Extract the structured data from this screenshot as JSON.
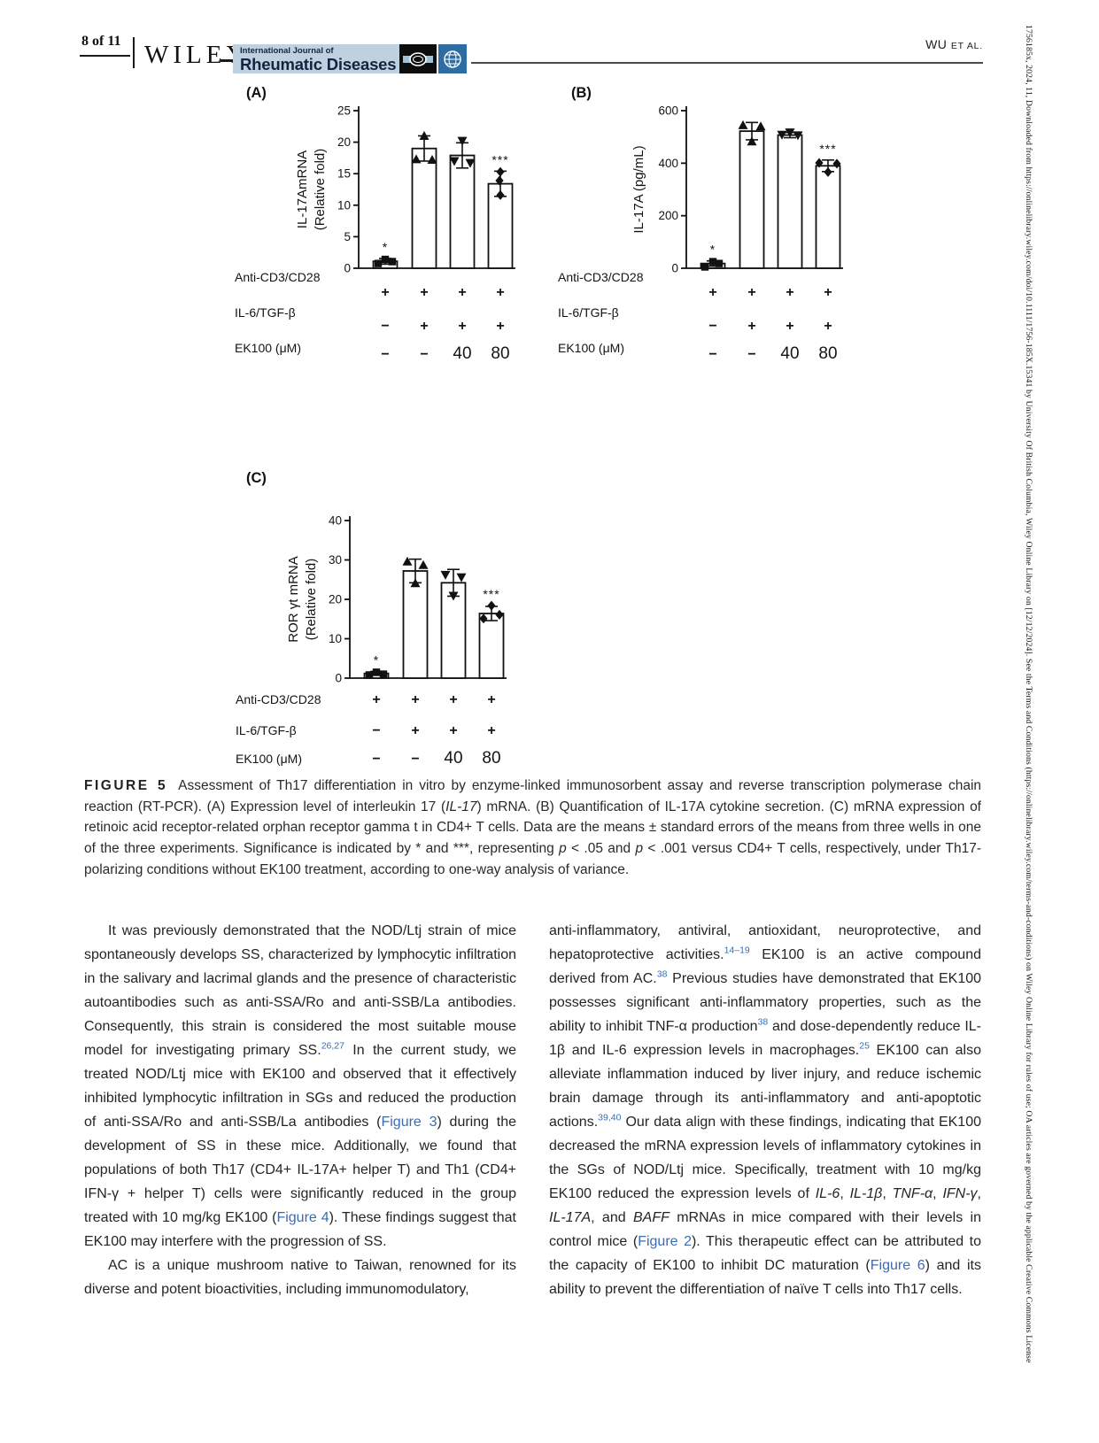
{
  "header": {
    "page_label": "8 of 11",
    "wiley_logo": "WILEY",
    "journal_small": "International Journal of",
    "journal_name": "Rheumatic Diseases",
    "running_author": "WU",
    "running_etal": "ET AL."
  },
  "colors": {
    "link_blue": "#3a6bb5",
    "banner_bg": "#bdd1e0",
    "banner_text": "#15243e",
    "logo_blue": "#2d6da4",
    "bar_outline": "#111111"
  },
  "chart_data": [
    {
      "id": "A",
      "type": "bar",
      "panel_label": "(A)",
      "ylabel_lines": [
        "IL-17AmRNA",
        "(Relative fold)"
      ],
      "ylim": [
        0,
        25
      ],
      "yticks": [
        0,
        5,
        10,
        15,
        20,
        25
      ],
      "values": [
        1.1,
        19,
        17.9,
        13.4
      ],
      "errors": [
        0.45,
        2,
        2,
        2
      ],
      "markers": [
        "square",
        "triangle-up",
        "triangle-down",
        "diamond"
      ],
      "points": [
        [
          [
            -8,
            0.75
          ],
          [
            0,
            1.4
          ],
          [
            8,
            1.05
          ]
        ],
        [
          [
            0,
            21
          ],
          [
            -9,
            17.3
          ],
          [
            9,
            17.2
          ]
        ],
        [
          [
            -9,
            17.0
          ],
          [
            9,
            16.7
          ],
          [
            0,
            20.2
          ]
        ],
        [
          [
            0,
            15.3
          ],
          [
            -1,
            13.9
          ],
          [
            0,
            11.6
          ]
        ]
      ],
      "sig": [
        "*",
        "",
        "",
        "***"
      ],
      "conditions": {
        "labels": [
          "Anti-CD3/CD28",
          "IL-6/TGF-β",
          "EK100 (μM)"
        ],
        "rows": [
          [
            "+",
            "+",
            "+",
            "+"
          ],
          [
            "−",
            "+",
            "+",
            "+"
          ],
          [
            "−",
            "−",
            "40",
            "80"
          ]
        ]
      }
    },
    {
      "id": "B",
      "type": "bar",
      "panel_label": "(B)",
      "ylabel_lines": [
        "IL-17A (pg/mL)"
      ],
      "ylim": [
        0,
        600
      ],
      "yticks": [
        0,
        200,
        400,
        600
      ],
      "values": [
        18,
        522,
        507,
        390
      ],
      "errors": [
        10,
        33,
        10,
        22
      ],
      "markers": [
        "square",
        "triangle-up",
        "triangle-down",
        "diamond"
      ],
      "points": [
        [
          [
            -9,
            5
          ],
          [
            0,
            25
          ],
          [
            7,
            18
          ]
        ],
        [
          [
            -10,
            545
          ],
          [
            10,
            540
          ],
          [
            0,
            483
          ]
        ],
        [
          [
            0,
            517
          ],
          [
            -9,
            508
          ],
          [
            9,
            506
          ]
        ],
        [
          [
            -10,
            401
          ],
          [
            10,
            398
          ],
          [
            0,
            366
          ]
        ]
      ],
      "sig": [
        "*",
        "",
        "",
        "***"
      ],
      "conditions": {
        "labels": [
          "Anti-CD3/CD28",
          "IL-6/TGF-β",
          "EK100 (μM)"
        ],
        "rows": [
          [
            "+",
            "+",
            "+",
            "+"
          ],
          [
            "−",
            "+",
            "+",
            "+"
          ],
          [
            "−",
            "−",
            "40",
            "80"
          ]
        ]
      }
    },
    {
      "id": "C",
      "type": "bar",
      "panel_label": "(C)",
      "ylabel_lines": [
        "ROR γt mRNA",
        "(Relative fold)"
      ],
      "ylim": [
        0,
        40
      ],
      "yticks": [
        0,
        10,
        20,
        30,
        40
      ],
      "values": [
        1.2,
        27.2,
        24.2,
        16.4
      ],
      "errors": [
        0.5,
        3,
        3.4,
        1.8
      ],
      "markers": [
        "square",
        "triangle-up",
        "triangle-down",
        "diamond"
      ],
      "points": [
        [
          [
            -8,
            0.8
          ],
          [
            0,
            1.5
          ],
          [
            8,
            1.0
          ]
        ],
        [
          [
            -9,
            29.6
          ],
          [
            9,
            28.7
          ],
          [
            0,
            24.1
          ]
        ],
        [
          [
            -9,
            26.2
          ],
          [
            9,
            25.6
          ],
          [
            0,
            20.9
          ]
        ],
        [
          [
            -9,
            15.1
          ],
          [
            0,
            18.4
          ],
          [
            9,
            16.1
          ]
        ]
      ],
      "sig": [
        "*",
        "",
        "",
        "***"
      ],
      "conditions": {
        "labels": [
          "Anti-CD3/CD28",
          "IL-6/TGF-β",
          "EK100 (μM)"
        ],
        "rows": [
          [
            "+",
            "+",
            "+",
            "+"
          ],
          [
            "−",
            "+",
            "+",
            "+"
          ],
          [
            "−",
            "−",
            "40",
            "80"
          ]
        ]
      }
    }
  ],
  "caption": {
    "label": "FIGURE 5",
    "segments": [
      {
        "t": "Assessment of Th17 differentiation in vitro by enzyme-linked immunosorbent assay and reverse transcription polymerase chain reaction (RT-PCR). (A) Expression level of interleukin 17 ("
      },
      {
        "t": "IL-17",
        "k": "i"
      },
      {
        "t": ") mRNA. (B) Quantification of IL-17A cytokine secretion. (C) mRNA expression of retinoic acid receptor-related orphan receptor gamma t in CD4+ T cells. Data are the means ± standard errors of the means from three wells in one of the three experiments. Significance is indicated by * and ***, representing "
      },
      {
        "t": "p",
        "k": "i"
      },
      {
        "t": " < .05 and "
      },
      {
        "t": "p",
        "k": "i"
      },
      {
        "t": " < .001 versus CD4+ T cells, respectively, under Th17-polarizing conditions without EK100 treatment, according to one-way analysis of variance."
      }
    ]
  },
  "body": {
    "left_paragraphs": [
      [
        {
          "t": "It was previously demonstrated that the NOD/Ltj strain of mice spontaneously develops SS, characterized by lymphocytic infiltration in the salivary and lacrimal glands and the presence of characteristic autoantibodies such as anti-SSA/Ro and anti-SSB/La antibodies. Consequently, this strain is considered the most suitable mouse model for investigating primary SS."
        },
        {
          "t": "26,27",
          "k": "sup"
        },
        {
          "t": " In the current study, we treated NOD/Ltj mice with EK100 and observed that it effectively inhibited lymphocytic infiltration in SGs and reduced the production of anti-SSA/Ro and anti-SSB/La antibodies ("
        },
        {
          "t": "Figure 3",
          "k": "link"
        },
        {
          "t": ") during the development of SS in these mice. Additionally, we found that populations of both Th17 (CD4+ IL-17A+ helper T) and Th1 (CD4+ IFN-γ + helper T) cells were significantly reduced in the group treated with 10 mg/kg EK100 ("
        },
        {
          "t": "Figure 4",
          "k": "link"
        },
        {
          "t": "). These findings suggest that EK100 may interfere with the progression of SS."
        }
      ],
      [
        {
          "t": "AC is a unique mushroom native to Taiwan, renowned for its diverse and potent bioactivities, including immunomodulatory,"
        }
      ]
    ],
    "right_paragraphs": [
      [
        {
          "t": "anti-inflammatory, antiviral, antioxidant, neuroprotective, and hepatoprotective activities."
        },
        {
          "t": "14–19",
          "k": "sup"
        },
        {
          "t": " EK100 is an active compound derived from AC."
        },
        {
          "t": "38",
          "k": "sup"
        },
        {
          "t": " Previous studies have demonstrated that EK100 possesses significant anti-inflammatory properties, such as the ability to inhibit TNF-α production"
        },
        {
          "t": "38",
          "k": "sup"
        },
        {
          "t": " and dose-dependently reduce IL-1β and IL-6 expression levels in macrophages."
        },
        {
          "t": "25",
          "k": "sup"
        },
        {
          "t": " EK100 can also alleviate inflammation induced by liver injury, and reduce ischemic brain damage through its anti-inflammatory and anti-apoptotic actions."
        },
        {
          "t": "39,40",
          "k": "sup"
        },
        {
          "t": " Our data align with these findings, indicating that EK100 decreased the mRNA expression levels of inflammatory cytokines in the SGs of NOD/Ltj mice. Specifically, treatment with 10 mg/kg EK100 reduced the expression levels of "
        },
        {
          "t": "IL-6",
          "k": "i"
        },
        {
          "t": ", "
        },
        {
          "t": "IL-1β",
          "k": "i"
        },
        {
          "t": ", "
        },
        {
          "t": "TNF-α",
          "k": "i"
        },
        {
          "t": ", "
        },
        {
          "t": "IFN-γ",
          "k": "i"
        },
        {
          "t": ", "
        },
        {
          "t": "IL-17A",
          "k": "i"
        },
        {
          "t": ", and "
        },
        {
          "t": "BAFF",
          "k": "i"
        },
        {
          "t": " mRNAs in mice compared with their levels in control mice ("
        },
        {
          "t": "Figure 2",
          "k": "link"
        },
        {
          "t": "). This therapeutic effect can be attributed to the capacity of EK100 to inhibit DC maturation ("
        },
        {
          "t": "Figure 6",
          "k": "link"
        },
        {
          "t": ") and its ability to prevent the differentiation of naïve T cells into Th17 cells."
        }
      ]
    ]
  },
  "sidebar": {
    "text": "1756185x, 2024, 11, Downloaded from https://onlinelibrary.wiley.com/doi/10.1111/1756-185X.15341 by University Of British Columbia, Wiley Online Library on [12/12/2024]. See the Terms and Conditions (https://onlinelibrary.wiley.com/terms-and-conditions) on Wiley Online Library for rules of use; OA articles are governed by the applicable Creative Commons License"
  }
}
